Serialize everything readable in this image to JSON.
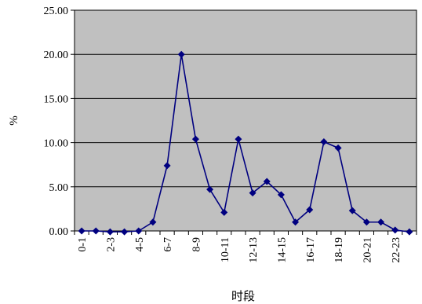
{
  "chart_data": {
    "type": "line",
    "x": [
      "0-1",
      "1-2",
      "2-3",
      "3-4",
      "4-5",
      "5-6",
      "6-7",
      "7-8",
      "8-9",
      "9-10",
      "10-11",
      "11-12",
      "12-13",
      "13-14",
      "14-15",
      "15-16",
      "16-17",
      "17-18",
      "18-19",
      "19-20",
      "20-21",
      "21-22",
      "22-23",
      "23-24"
    ],
    "x_tick_labels_shown": [
      "0-1",
      "2-3",
      "4-5",
      "6-7",
      "8-9",
      "10-11",
      "12-13",
      "14-15",
      "16-17",
      "18-19",
      "20-21",
      "22-23"
    ],
    "series": [
      {
        "values": [
          0.0,
          0.0,
          -0.1,
          -0.1,
          0.0,
          1.0,
          7.4,
          20.0,
          10.4,
          4.7,
          2.1,
          10.4,
          4.3,
          5.6,
          4.1,
          1.0,
          2.4,
          10.1,
          9.4,
          2.3,
          1.0,
          1.0,
          0.1,
          -0.1
        ]
      }
    ],
    "y_tick_labels": [
      "0.00",
      "5.00",
      "10.00",
      "15.00",
      "20.00",
      "25.00"
    ],
    "ylim": [
      0,
      25
    ],
    "xlabel": "时段",
    "ylabel": "%",
    "grid": "horizontal",
    "legend": "none",
    "colors": {
      "plot_area": "#c0c0c0",
      "series": "#000080",
      "grid": "#000000"
    }
  }
}
